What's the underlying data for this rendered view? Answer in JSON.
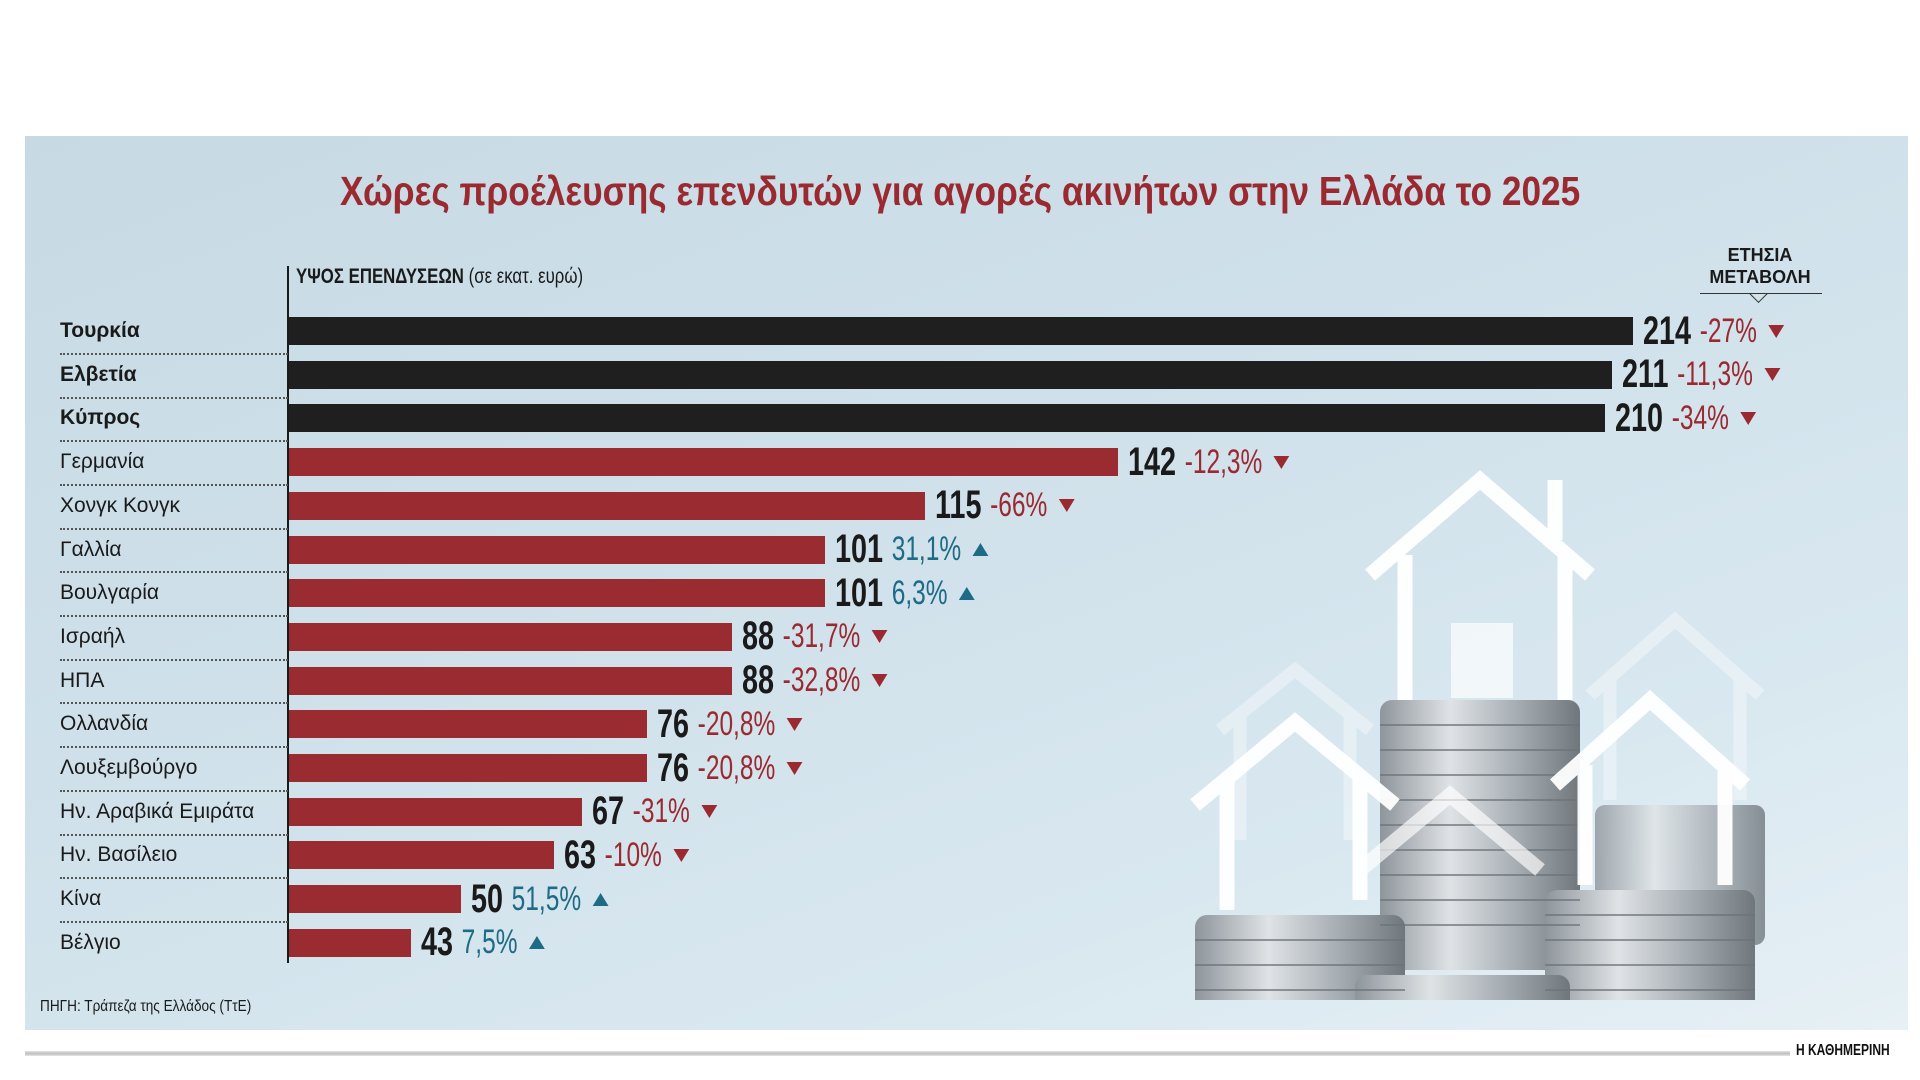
{
  "title": "Χώρες προέλευσης επενδυτών για αγορές ακινήτων στην Ελλάδα το 2025",
  "chart_data": {
    "type": "bar",
    "orientation": "horizontal",
    "title": "Χώρες προέλευσης επενδυτών για αγορές ακινήτων στην Ελλάδα το 2025",
    "xlabel_bold": "ΥΨΟΣ ΕΠΕΝΔΥΣΕΩΝ",
    "xlabel_unit": "(σε εκατ. ευρώ)",
    "change_header": [
      "ΕΤΗΣΙΑ",
      "ΜΕΤΑΒΟΛΗ"
    ],
    "categories": [
      "Τουρκία",
      "Ελβετία",
      "Κύπρος",
      "Γερμανία",
      "Χονγκ Κονγκ",
      "Γαλλία",
      "Βουλγαρία",
      "Ισραήλ",
      "ΗΠΑ",
      "Ολλανδία",
      "Λουξεμβούργο",
      "Ην. Αραβικά Εμιράτα",
      "Ην. Βασίλειο",
      "Κίνα",
      "Βέλγιο"
    ],
    "values": [
      214,
      211,
      210,
      142,
      115,
      101,
      101,
      88,
      88,
      76,
      76,
      67,
      63,
      50,
      43
    ],
    "value_labels": [
      "214",
      "211",
      "210",
      "142",
      "115",
      "101",
      "101",
      "88",
      "88",
      "76",
      "76",
      "67",
      "63",
      "50",
      "43"
    ],
    "changes": [
      "-27%",
      "-11,3%",
      "-34%",
      "-12,3%",
      "-66%",
      "31,1%",
      "6,3%",
      "-31,7%",
      "-32,8%",
      "-20,8%",
      "-20,8%",
      "-31%",
      "-10%",
      "51,5%",
      "7,5%"
    ],
    "change_direction": [
      "down",
      "down",
      "down",
      "down",
      "down",
      "up",
      "up",
      "down",
      "down",
      "down",
      "down",
      "down",
      "down",
      "up",
      "up"
    ],
    "highlighted_top": 3,
    "xlim": [
      26,
      214
    ],
    "grid": false,
    "colors": {
      "top": "#1f1f1f",
      "other": "#992b31",
      "down": "#9b2a30",
      "up": "#1d6b85",
      "title": "#9b2a30"
    }
  },
  "source": "ΠΗΓΗ: Τράπεζα της Ελλάδος (ΤτΕ)",
  "brand": "Η ΚΑΘΗΜΕΡΙΝΗ"
}
